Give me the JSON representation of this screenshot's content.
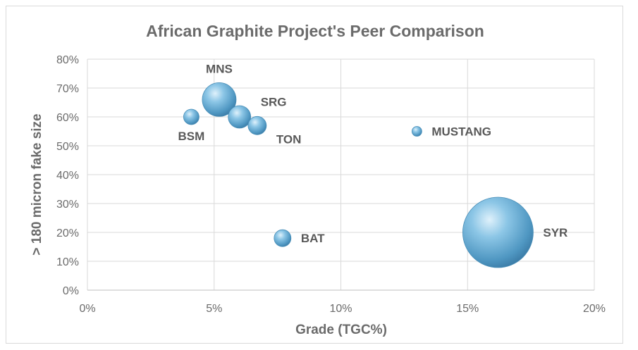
{
  "chart_data": {
    "type": "scatter",
    "title": "African Graphite Project's Peer Comparison",
    "xlabel": "Grade (TGC%)",
    "ylabel": "> 180 micron fake size",
    "xlim": [
      0,
      20
    ],
    "ylim": [
      0,
      80
    ],
    "x_ticks": [
      "0%",
      "5%",
      "10%",
      "15%",
      "20%"
    ],
    "y_ticks": [
      "0%",
      "10%",
      "20%",
      "30%",
      "40%",
      "50%",
      "60%",
      "70%",
      "80%"
    ],
    "grid": true,
    "bubble_color": "#5ea7cf",
    "points": [
      {
        "label": "MNS",
        "x": 5.2,
        "y": 66,
        "size": 24
      },
      {
        "label": "SRG",
        "x": 6.0,
        "y": 60,
        "size": 16
      },
      {
        "label": "TON",
        "x": 6.7,
        "y": 57,
        "size": 13
      },
      {
        "label": "BSM",
        "x": 4.1,
        "y": 60,
        "size": 11
      },
      {
        "label": "MUSTANG",
        "x": 13.0,
        "y": 55,
        "size": 7
      },
      {
        "label": "BAT",
        "x": 7.7,
        "y": 18,
        "size": 12
      },
      {
        "label": "SYR",
        "x": 16.2,
        "y": 20,
        "size": 50
      }
    ]
  }
}
